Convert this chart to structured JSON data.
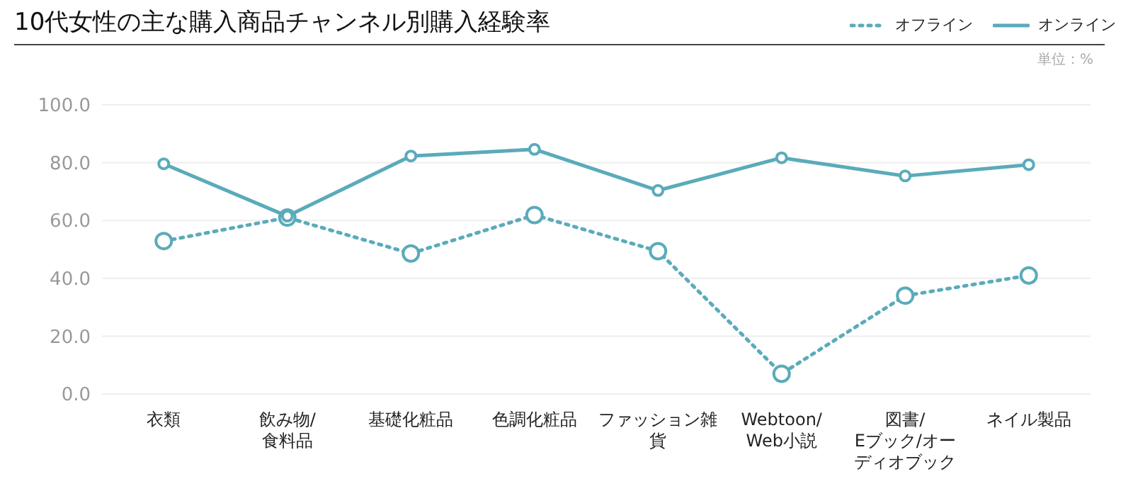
{
  "chart_data": {
    "type": "line",
    "title": "10代女性の主な購入商品チャンネル別購入経験率",
    "annotations": [
      "単位：%"
    ],
    "categories": [
      "衣類",
      "飲み物/食料品",
      "基礎化粧品",
      "色調化粧品",
      "ファッション雑貨",
      "Webtoon/Web小説",
      "図書/Eブック/オーディオブック",
      "ネイル製品"
    ],
    "series": [
      {
        "name": "オフライン",
        "color": "#5aabba",
        "line_style": "dotted",
        "values": [
          52.9,
          61.0,
          48.6,
          61.9,
          49.4,
          7.0,
          34.0,
          41.0
        ]
      },
      {
        "name": "オンライン",
        "color": "#5aabba",
        "line_style": "solid",
        "values": [
          79.6,
          61.5,
          82.3,
          84.6,
          70.4,
          81.7,
          75.4,
          79.3
        ]
      }
    ],
    "ylim": [
      0,
      100
    ],
    "yticks": [
      {
        "value": 0,
        "label": "0.0"
      },
      {
        "value": 20,
        "label": "20.0"
      },
      {
        "value": 40,
        "label": "40.0"
      },
      {
        "value": 60,
        "label": "60.0"
      },
      {
        "value": 80,
        "label": "80.0"
      },
      {
        "value": 100,
        "label": "100.0"
      }
    ],
    "grid": "y",
    "legend": "top right",
    "marker": "circle"
  }
}
